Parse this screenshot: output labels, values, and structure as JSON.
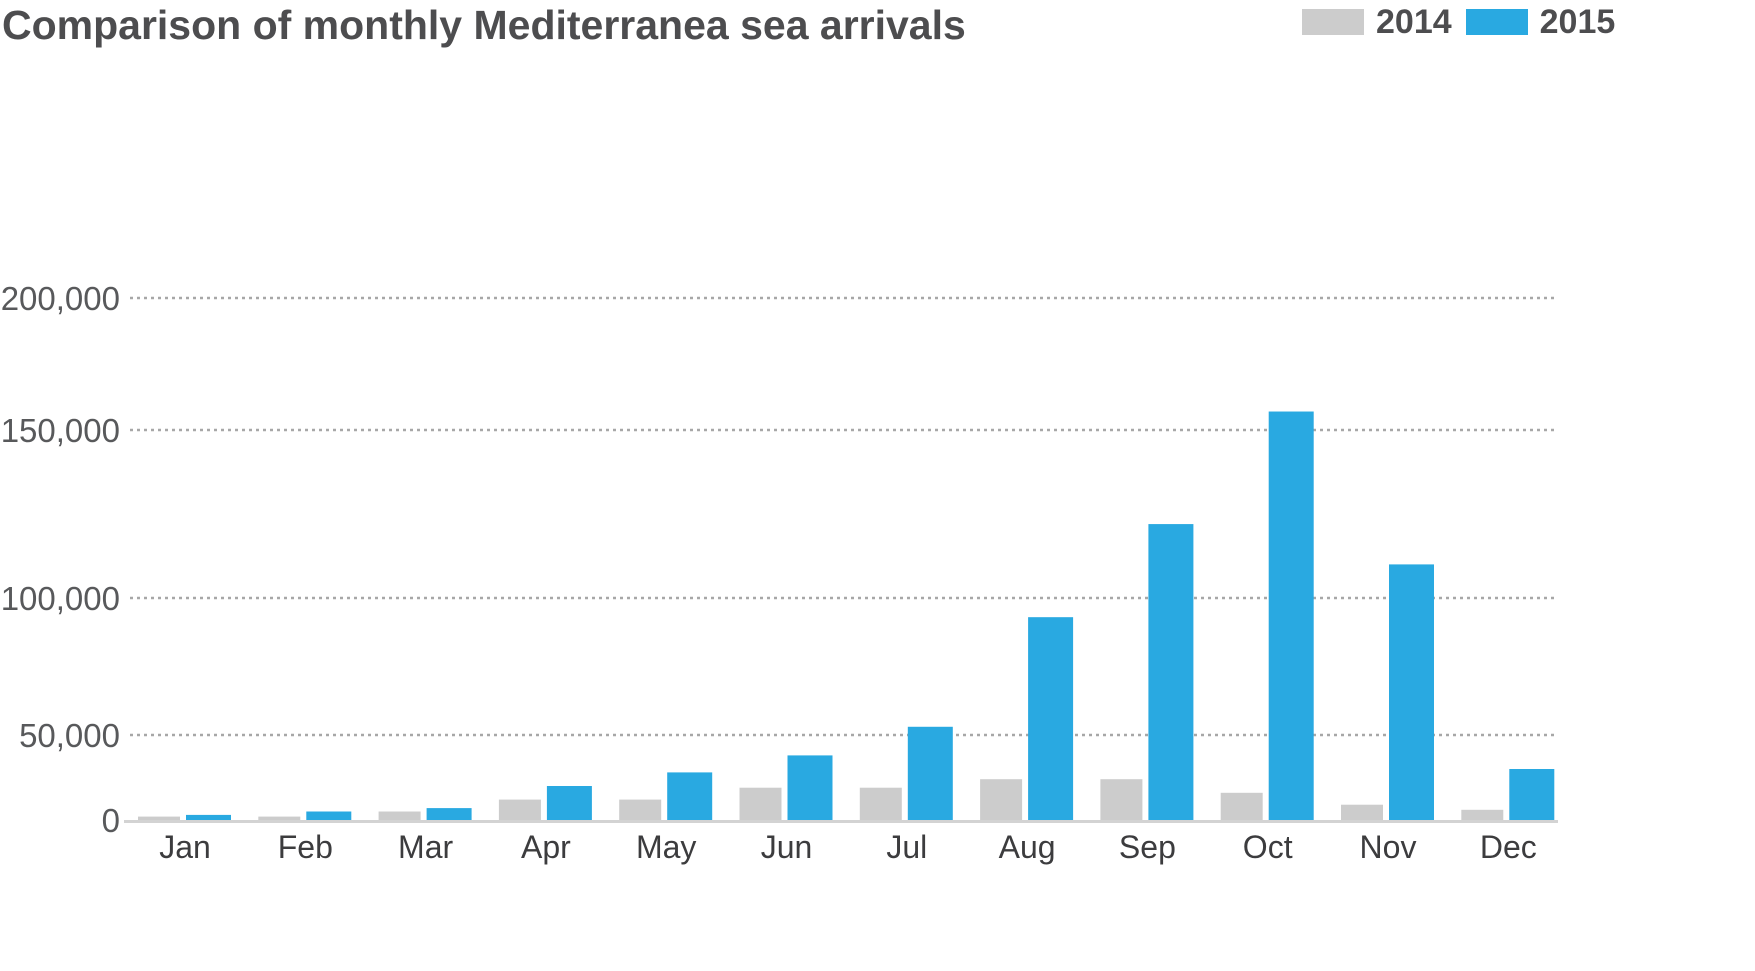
{
  "chart_data": {
    "type": "bar",
    "title": "Comparison of monthly Mediterranea sea arrivals",
    "xlabel": "",
    "ylabel": "",
    "categories": [
      "Jan",
      "Feb",
      "Mar",
      "Apr",
      "May",
      "Jun",
      "Jul",
      "Aug",
      "Sep",
      "Oct",
      "Nov",
      "Dec"
    ],
    "series": [
      {
        "name": "2014",
        "color": "#cccccc",
        "values": [
          2000,
          2000,
          5000,
          12000,
          12000,
          19000,
          19000,
          24000,
          24000,
          16000,
          9000,
          6000
        ]
      },
      {
        "name": "2015",
        "color": "#29a9e1",
        "values": [
          3000,
          5000,
          7000,
          20000,
          28000,
          38000,
          53000,
          93000,
          122000,
          157000,
          110000,
          30000
        ]
      }
    ],
    "yticks": [
      {
        "value": 0,
        "label": "0"
      },
      {
        "value": 50000,
        "label": "50,000"
      },
      {
        "value": 100000,
        "label": "100,000"
      },
      {
        "value": 150000,
        "label": "150,000"
      },
      {
        "value": 200000,
        "label": "200,000"
      }
    ],
    "ylim": [
      0,
      200000
    ],
    "y_scale": "nonlinear",
    "grid": true,
    "legend": {
      "placement": "top-right"
    }
  }
}
